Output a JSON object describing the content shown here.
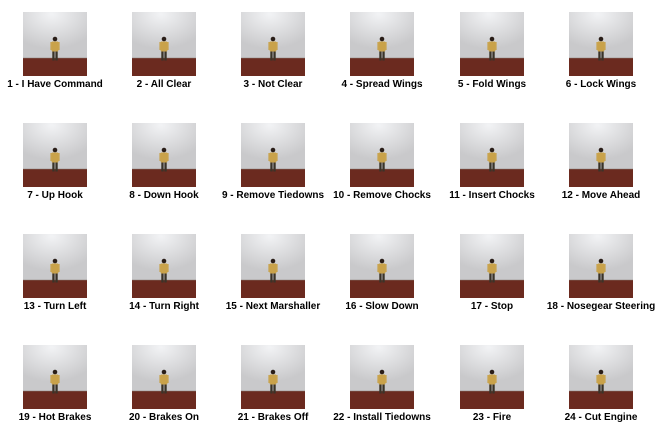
{
  "figure": {
    "captions": [
      "1 - I Have Command",
      "2 - All Clear",
      "3 - Not Clear",
      "4 - Spread Wings",
      "5 - Fold Wings",
      "6 - Lock Wings",
      "7 - Up Hook",
      "8 - Down Hook",
      "9 - Remove Tiedowns",
      "10 - Remove Chocks",
      "11 - Insert Chocks",
      "12 - Move Ahead",
      "13 - Turn Left",
      "14 - Turn Right",
      "15 - Next Marshaller",
      "16 - Slow Down",
      "17 - Stop",
      "18 - Nosegear Steering",
      "19 - Hot Brakes",
      "20 - Brakes On",
      "21 - Brakes Off",
      "22 - Install Tiedowns",
      "23 - Fire",
      "24 - Cut Engine"
    ],
    "colors": {
      "wall": "#c9c9cb",
      "wall_light": "#f2f3f5",
      "floor": "#6b2a1f",
      "vest": "#c9a24a",
      "pants": "#3a3328",
      "skin": "#2a1e18"
    }
  }
}
